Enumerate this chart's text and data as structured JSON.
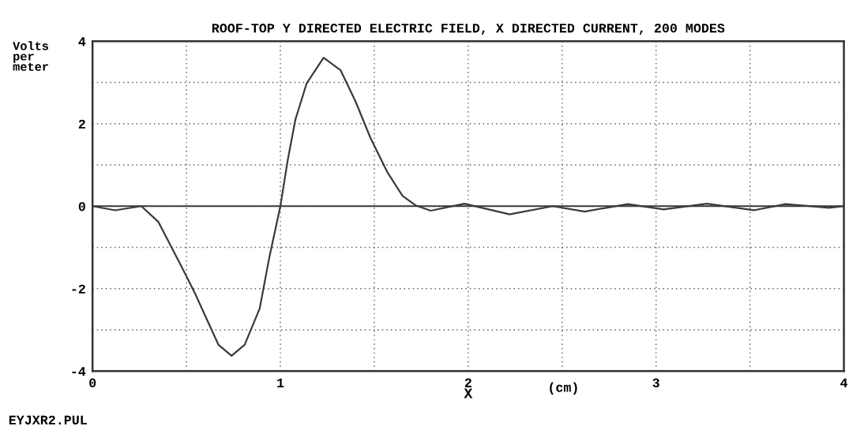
{
  "chart_data": {
    "type": "line",
    "title": "ROOF-TOP Y DIRECTED ELECTRIC FIELD, X DIRECTED CURRENT, 200 MODES",
    "xlabel": "X",
    "ylabel": "Volts\nper\nmeter",
    "annotations": [
      "(cm)",
      "EYJXR2.PUL"
    ],
    "x": [
      0,
      0.12,
      0.26,
      0.35,
      0.4,
      0.48,
      0.55,
      0.62,
      0.67,
      0.74,
      0.81,
      0.89,
      0.94,
      1.0,
      1.04,
      1.08,
      1.14,
      1.23,
      1.32,
      1.4,
      1.48,
      1.57,
      1.65,
      1.72,
      1.8,
      1.98,
      2.22,
      2.45,
      2.62,
      2.85,
      3.04,
      3.27,
      3.52,
      3.69,
      3.92,
      4.0
    ],
    "series": [
      {
        "color": "#3a3a3a",
        "values": [
          0,
          -0.1,
          0,
          -0.38,
          -0.82,
          -1.52,
          -2.16,
          -2.86,
          -3.36,
          -3.63,
          -3.36,
          -2.48,
          -1.27,
          0,
          1.14,
          2.1,
          2.98,
          3.6,
          3.3,
          2.54,
          1.65,
          0.82,
          0.25,
          0.02,
          -0.11,
          0.06,
          -0.2,
          0,
          -0.13,
          0.05,
          -0.08,
          0.06,
          -0.1,
          0.05,
          -0.04,
          0
        ]
      }
    ],
    "xlim": [
      0,
      4
    ],
    "ylim": [
      -4,
      4
    ],
    "xticks": [
      0,
      {
        "value": 0.5,
        "label": null
      },
      1,
      {
        "value": 1.5,
        "label": null
      },
      2,
      {
        "value": 2.5,
        "label": null
      },
      3,
      {
        "value": 3.5,
        "label": null
      },
      4
    ],
    "yticks": [
      -4,
      {
        "value": -3,
        "label": null
      },
      -2,
      {
        "value": -1,
        "label": null
      },
      0,
      {
        "value": 1,
        "label": null
      },
      2,
      {
        "value": 3,
        "label": null
      },
      4
    ],
    "ref_lines": [
      {
        "axis": "y",
        "value": 0,
        "color": "#3a3a3a"
      }
    ],
    "grid": true,
    "legend": false,
    "marker": "none",
    "line_style": "solid"
  }
}
